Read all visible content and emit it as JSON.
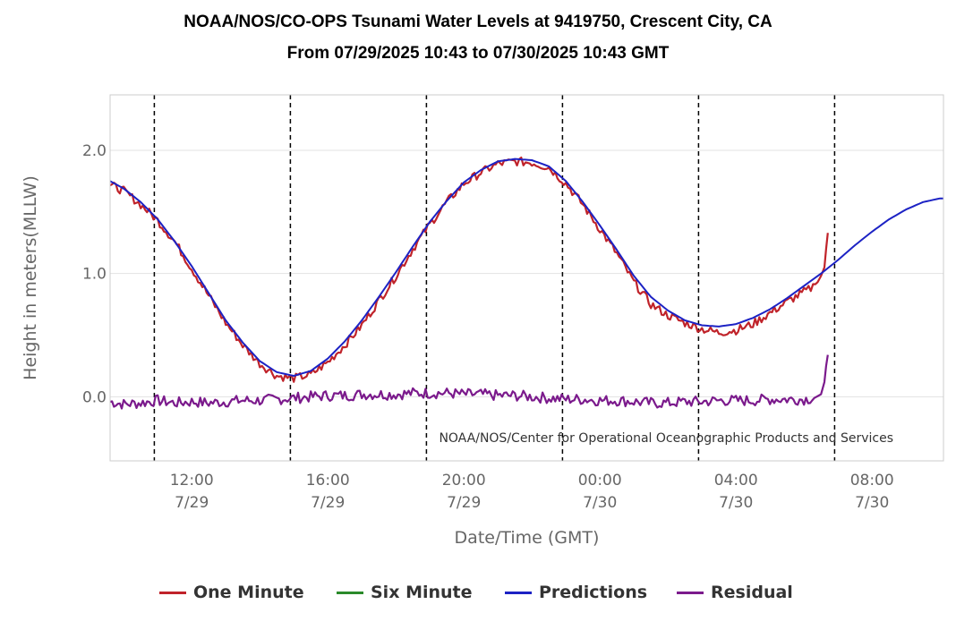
{
  "chart_data": {
    "type": "line",
    "title": "NOAA/NOS/CO-OPS Tsunami Water Levels at 9419750, Crescent City, CA",
    "subtitle": "From 07/29/2025 10:43 to 07/30/2025 10:43 GMT",
    "xlabel": "Date/Time (GMT)",
    "ylabel": "Height in meters(MLLW)",
    "credit": "NOAA/NOS/Center for Operational Oceanographic Products and Services",
    "x_unit": "hour (GMT), 0 = 07/29 00:00",
    "xlim": [
      9.6,
      34.1
    ],
    "ylim": [
      -0.52,
      2.45
    ],
    "grid": true,
    "legend_position": "bottom",
    "x_ticks": [
      {
        "value": 12,
        "time": "12:00",
        "date": "7/29"
      },
      {
        "value": 16,
        "time": "16:00",
        "date": "7/29"
      },
      {
        "value": 20,
        "time": "20:00",
        "date": "7/29"
      },
      {
        "value": 24,
        "time": "00:00",
        "date": "7/30"
      },
      {
        "value": 28,
        "time": "04:00",
        "date": "7/30"
      },
      {
        "value": 32,
        "time": "08:00",
        "date": "7/30"
      }
    ],
    "y_ticks": [
      {
        "value": 0,
        "label": "0.0"
      },
      {
        "value": 1,
        "label": "1.0"
      },
      {
        "value": 2,
        "label": "2.0"
      }
    ],
    "vertical_markers": [
      10.9,
      14.9,
      18.9,
      22.9,
      26.9,
      30.9
    ],
    "series": [
      {
        "name": "One Minute",
        "color": "#c0232a",
        "x": [
          9.6,
          10,
          10.5,
          11,
          11.5,
          12,
          12.5,
          13,
          13.5,
          14,
          14.5,
          15,
          15.5,
          16,
          16.5,
          17,
          17.5,
          18,
          18.5,
          19,
          19.5,
          20,
          20.5,
          21,
          21.5,
          22,
          22.5,
          23,
          23.5,
          24,
          24.5,
          25,
          25.5,
          26,
          26.5,
          27,
          27.5,
          28,
          28.5,
          29,
          29.5,
          30,
          30.2,
          30.4,
          30.5,
          30.6,
          30.65,
          30.7
        ],
        "y": [
          1.72,
          1.67,
          1.56,
          1.43,
          1.26,
          1.04,
          0.82,
          0.6,
          0.42,
          0.27,
          0.17,
          0.15,
          0.18,
          0.28,
          0.42,
          0.58,
          0.78,
          0.98,
          1.2,
          1.4,
          1.58,
          1.73,
          1.82,
          1.89,
          1.91,
          1.9,
          1.86,
          1.73,
          1.56,
          1.36,
          1.16,
          0.93,
          0.75,
          0.66,
          0.6,
          0.55,
          0.52,
          0.54,
          0.59,
          0.68,
          0.77,
          0.85,
          0.88,
          0.93,
          0.98,
          1.05,
          1.2,
          1.33
        ]
      },
      {
        "name": "Six Minute",
        "color": "#2a8a2a",
        "x": [],
        "y": []
      },
      {
        "name": "Predictions",
        "color": "#1c22c4",
        "x": [
          9.6,
          10,
          10.5,
          11,
          11.5,
          12,
          12.5,
          13,
          13.5,
          14,
          14.5,
          15,
          15.5,
          16,
          16.5,
          17,
          17.5,
          18,
          18.5,
          19,
          19.5,
          20,
          20.5,
          21,
          21.5,
          22,
          22.5,
          23,
          23.5,
          24,
          24.5,
          25,
          25.5,
          26,
          26.5,
          27,
          27.5,
          28,
          28.5,
          29,
          29.5,
          30,
          30.5,
          31,
          31.5,
          32,
          32.5,
          33,
          33.5,
          34,
          34.1
        ],
        "y": [
          1.75,
          1.69,
          1.58,
          1.44,
          1.26,
          1.06,
          0.84,
          0.62,
          0.44,
          0.29,
          0.2,
          0.17,
          0.21,
          0.31,
          0.45,
          0.62,
          0.81,
          1.01,
          1.22,
          1.42,
          1.59,
          1.74,
          1.84,
          1.91,
          1.93,
          1.92,
          1.87,
          1.75,
          1.58,
          1.39,
          1.19,
          0.98,
          0.81,
          0.7,
          0.62,
          0.58,
          0.57,
          0.59,
          0.64,
          0.71,
          0.8,
          0.9,
          1.0,
          1.11,
          1.23,
          1.34,
          1.44,
          1.52,
          1.58,
          1.61,
          1.61
        ]
      },
      {
        "name": "Residual",
        "color": "#7b1a8c",
        "x": [
          9.6,
          10,
          10.5,
          11,
          11.5,
          12,
          12.5,
          13,
          13.5,
          14,
          14.5,
          15,
          15.5,
          16,
          16.5,
          17,
          17.5,
          18,
          18.5,
          19,
          19.5,
          20,
          20.5,
          21,
          21.5,
          22,
          22.5,
          23,
          23.5,
          24,
          24.5,
          25,
          25.5,
          26,
          26.5,
          27,
          27.5,
          28,
          28.5,
          29,
          29.5,
          30,
          30.3,
          30.5,
          30.6,
          30.65,
          30.7
        ],
        "y": [
          -0.04,
          -0.06,
          -0.05,
          -0.03,
          -0.05,
          -0.04,
          -0.05,
          -0.04,
          -0.03,
          -0.03,
          -0.02,
          -0.01,
          0.0,
          0.01,
          0.01,
          0.02,
          0.02,
          0.02,
          0.03,
          0.03,
          0.03,
          0.02,
          0.02,
          0.01,
          0.01,
          0.0,
          -0.01,
          -0.02,
          -0.02,
          -0.03,
          -0.03,
          -0.04,
          -0.05,
          -0.05,
          -0.04,
          -0.04,
          -0.03,
          -0.03,
          -0.03,
          -0.02,
          -0.02,
          -0.02,
          -0.01,
          0.02,
          0.12,
          0.25,
          0.34
        ]
      }
    ]
  }
}
